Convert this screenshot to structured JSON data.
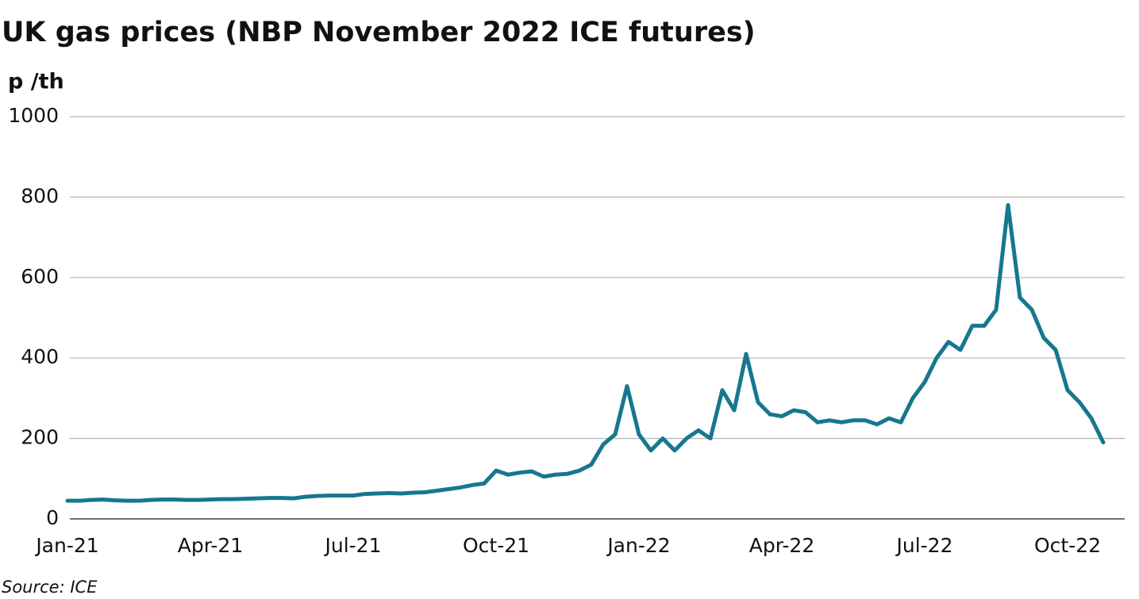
{
  "chart_data": {
    "type": "line",
    "title": "UK gas prices (NBP November 2022 ICE futures)",
    "y_label": "p /th",
    "source": "Source: ICE",
    "categories": [
      "Jan-21",
      null,
      null,
      null,
      null,
      null,
      null,
      null,
      null,
      null,
      null,
      null,
      "Apr-21",
      null,
      null,
      null,
      null,
      null,
      null,
      null,
      null,
      null,
      null,
      null,
      "Jul-21",
      null,
      null,
      null,
      null,
      null,
      null,
      null,
      null,
      null,
      null,
      null,
      "Oct-21",
      null,
      null,
      null,
      null,
      null,
      null,
      null,
      null,
      null,
      null,
      null,
      "Jan-22",
      null,
      null,
      null,
      null,
      null,
      null,
      null,
      null,
      null,
      null,
      null,
      "Apr-22",
      null,
      null,
      null,
      null,
      null,
      null,
      null,
      null,
      null,
      null,
      null,
      "Jul-22",
      null,
      null,
      null,
      null,
      null,
      null,
      null,
      null,
      null,
      null,
      null,
      "Oct-22",
      null,
      null,
      null
    ],
    "series": [
      {
        "color": "#16778f",
        "values": [
          45,
          45,
          47,
          48,
          46,
          45,
          45,
          47,
          48,
          48,
          47,
          47,
          48,
          49,
          49,
          50,
          51,
          52,
          52,
          51,
          55,
          57,
          58,
          58,
          58,
          62,
          63,
          64,
          63,
          65,
          66,
          70,
          74,
          78,
          84,
          88,
          120,
          110,
          115,
          118,
          105,
          110,
          112,
          120,
          135,
          185,
          210,
          330,
          210,
          170,
          200,
          170,
          200,
          220,
          200,
          320,
          270,
          410,
          290,
          260,
          255,
          270,
          265,
          240,
          245,
          240,
          245,
          245,
          235,
          250,
          240,
          300,
          340,
          400,
          440,
          420,
          480,
          480,
          520,
          780,
          550,
          520,
          450,
          420,
          320,
          290,
          250,
          190
        ]
      }
    ],
    "ylim": [
      0,
      1000
    ],
    "yticks": [
      0,
      200,
      400,
      600,
      800,
      1000
    ],
    "grid": true
  }
}
